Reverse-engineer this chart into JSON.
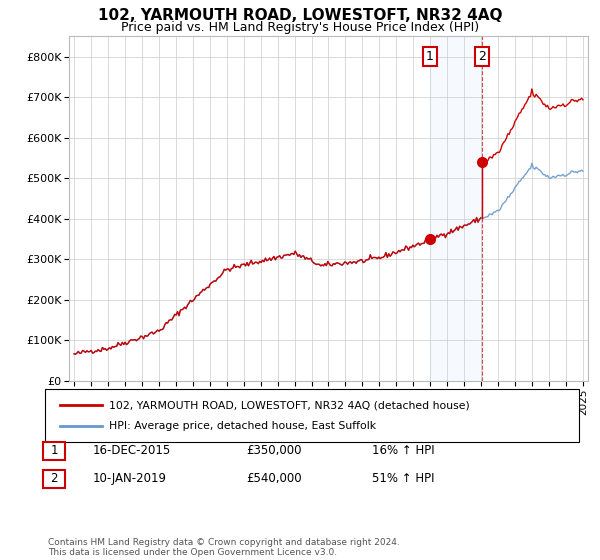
{
  "title": "102, YARMOUTH ROAD, LOWESTOFT, NR32 4AQ",
  "subtitle": "Price paid vs. HM Land Registry's House Price Index (HPI)",
  "legend_line1": "102, YARMOUTH ROAD, LOWESTOFT, NR32 4AQ (detached house)",
  "legend_line2": "HPI: Average price, detached house, East Suffolk",
  "annotation1_label": "1",
  "annotation1_date": "16-DEC-2015",
  "annotation1_price": "£350,000",
  "annotation1_hpi": "16% ↑ HPI",
  "annotation2_label": "2",
  "annotation2_date": "10-JAN-2019",
  "annotation2_price": "£540,000",
  "annotation2_hpi": "51% ↑ HPI",
  "footer": "Contains HM Land Registry data © Crown copyright and database right 2024.\nThis data is licensed under the Open Government Licence v3.0.",
  "red_color": "#cc0000",
  "blue_color": "#6699cc",
  "shaded_color": "#ddeeff",
  "annotation_box_color": "#cc0000",
  "grid_color": "#cccccc",
  "bg_color": "#ffffff",
  "ylim_min": 0,
  "ylim_max": 850000,
  "yticks": [
    0,
    100000,
    200000,
    300000,
    400000,
    500000,
    600000,
    700000,
    800000
  ],
  "sale1_x": 2015.96,
  "sale1_y": 350000,
  "sale2_x": 2019.03,
  "sale2_y": 540000,
  "xlim_min": 1994.7,
  "xlim_max": 2025.3
}
